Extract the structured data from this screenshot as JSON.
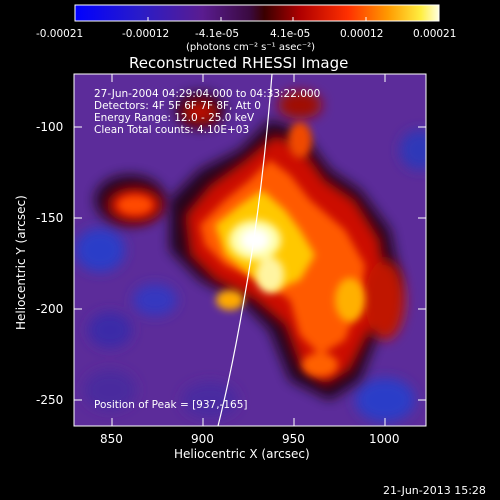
{
  "colorbar": {
    "tick_labels": [
      "-0.00021",
      "-0.00012",
      "-4.1e-05",
      "4.1e-05",
      "0.00012",
      "0.00021"
    ],
    "units": "(photons cm⁻² s⁻¹ asec⁻²)",
    "min": -0.00021,
    "max": 0.00021
  },
  "plot": {
    "title": "Reconstructed RHESSI Image",
    "info_lines": [
      "27-Jun-2004 04:29:04.000 to 04:33:22.000",
      "Detectors: 4F 5F 6F 7F 8F, Att 0",
      "Energy Range: 12.0 - 25.0 keV",
      "Clean     Total counts: 4.10E+03"
    ],
    "peak_text": "Position of Peak = [937,-165]",
    "x_axis": {
      "label": "Heliocentric X (arcsec)",
      "ticks": [
        850,
        900,
        950,
        1000
      ],
      "range": [
        829,
        1022
      ]
    },
    "y_axis": {
      "label": "Heliocentric Y (arcsec)",
      "ticks": [
        -100,
        -150,
        -200,
        -250
      ],
      "range": [
        -262,
        -70
      ]
    }
  },
  "footer": {
    "timestamp": "21-Jun-2013 15:28"
  }
}
